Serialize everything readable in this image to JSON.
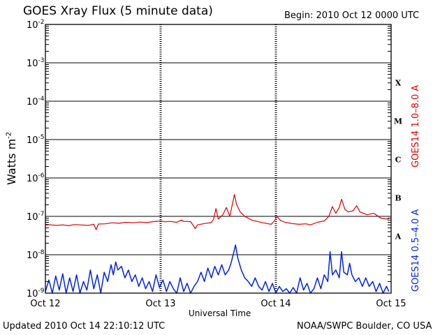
{
  "header": {
    "title": "GOES Xray Flux (5 minute data)",
    "begin": "Begin:  2010 Oct 12 0000 UTC"
  },
  "footer": {
    "updated": "Updated 2010 Oct 14 22:10:12 UTC",
    "credit": "NOAA/SWPC Boulder, CO USA"
  },
  "chart_data": {
    "type": "line",
    "title": "GOES Xray Flux (5 minute data)",
    "xlabel": "Universal Time",
    "ylabel": "Watts m",
    "ylabel_exponent": "-2",
    "y_scale": "log",
    "ylim": [
      1e-09,
      0.01
    ],
    "xlim": [
      "2010-10-12 00:00",
      "2010-10-15 00:00"
    ],
    "x_ticks": [
      "Oct 12",
      "Oct 13",
      "Oct 14",
      "Oct 15"
    ],
    "y_ticks": [
      {
        "mant": "10",
        "exp": "-9",
        "value": 1e-09
      },
      {
        "mant": "10",
        "exp": "-8",
        "value": 1e-08
      },
      {
        "mant": "10",
        "exp": "-7",
        "value": 1e-07
      },
      {
        "mant": "10",
        "exp": "-6",
        "value": 1e-06
      },
      {
        "mant": "10",
        "exp": "-5",
        "value": 1e-05
      },
      {
        "mant": "10",
        "exp": "-4",
        "value": 0.0001
      },
      {
        "mant": "10",
        "exp": "-3",
        "value": 0.001
      },
      {
        "mant": "10",
        "exp": "-2",
        "value": 0.01
      }
    ],
    "flare_classes": [
      {
        "label": "A",
        "value": 1e-08
      },
      {
        "label": "B",
        "value": 1e-07
      },
      {
        "label": "C",
        "value": 1e-06
      },
      {
        "label": "M",
        "value": 1e-05
      },
      {
        "label": "X",
        "value": 0.0001
      }
    ],
    "grid": true,
    "series": [
      {
        "name": "GOES14 1.0–8.0 A",
        "color": "#e00000",
        "points": [
          [
            0.0,
            6.2e-08
          ],
          [
            0.05,
            6e-08
          ],
          [
            0.1,
            5.8e-08
          ],
          [
            0.15,
            6e-08
          ],
          [
            0.2,
            5.7e-08
          ],
          [
            0.25,
            6.1e-08
          ],
          [
            0.3,
            6e-08
          ],
          [
            0.37,
            5.8e-08
          ],
          [
            0.42,
            6.2e-08
          ],
          [
            0.44,
            4.5e-08
          ],
          [
            0.46,
            6.3e-08
          ],
          [
            0.52,
            6.4e-08
          ],
          [
            0.58,
            6.8e-08
          ],
          [
            0.64,
            6.6e-08
          ],
          [
            0.7,
            7e-08
          ],
          [
            0.76,
            6.8e-08
          ],
          [
            0.82,
            7.1e-08
          ],
          [
            0.88,
            6.9e-08
          ],
          [
            0.94,
            7.3e-08
          ],
          [
            1.0,
            7.6e-08
          ],
          [
            1.04,
            7.2e-08
          ],
          [
            1.08,
            7.4e-08
          ],
          [
            1.14,
            7e-08
          ],
          [
            1.18,
            8e-08
          ],
          [
            1.2,
            7.4e-08
          ],
          [
            1.26,
            7.3e-08
          ],
          [
            1.3,
            4.8e-08
          ],
          [
            1.32,
            6e-08
          ],
          [
            1.38,
            6.5e-08
          ],
          [
            1.44,
            6.9e-08
          ],
          [
            1.46,
            8.5e-08
          ],
          [
            1.48,
            1.6e-07
          ],
          [
            1.5,
            8.5e-08
          ],
          [
            1.54,
            1.1e-07
          ],
          [
            1.57,
            1.7e-07
          ],
          [
            1.6,
            1e-07
          ],
          [
            1.62,
            1.9e-07
          ],
          [
            1.64,
            3.7e-07
          ],
          [
            1.66,
            2e-07
          ],
          [
            1.69,
            1.3e-07
          ],
          [
            1.73,
            1e-07
          ],
          [
            1.79,
            8e-08
          ],
          [
            1.85,
            7.2e-08
          ],
          [
            1.91,
            6.6e-08
          ],
          [
            1.96,
            6.2e-08
          ],
          [
            1.99,
            7.8e-08
          ],
          [
            2.01,
            1e-07
          ],
          [
            2.04,
            7.8e-08
          ],
          [
            2.08,
            7e-08
          ],
          [
            2.14,
            6.5e-08
          ],
          [
            2.2,
            6.2e-08
          ],
          [
            2.26,
            6.4e-08
          ],
          [
            2.3,
            6e-08
          ],
          [
            2.36,
            7e-08
          ],
          [
            2.42,
            7.6e-08
          ],
          [
            2.46,
            1e-07
          ],
          [
            2.49,
            1.8e-07
          ],
          [
            2.52,
            1.2e-07
          ],
          [
            2.55,
            1.7e-07
          ],
          [
            2.57,
            2.8e-07
          ],
          [
            2.6,
            1.5e-07
          ],
          [
            2.63,
            1.3e-07
          ],
          [
            2.67,
            1.4e-07
          ],
          [
            2.7,
            1.9e-07
          ],
          [
            2.73,
            1.3e-07
          ],
          [
            2.79,
            1.1e-07
          ],
          [
            2.85,
            1.2e-07
          ],
          [
            2.91,
            9e-08
          ],
          [
            2.97,
            8.5e-08
          ],
          [
            2.98,
            9e-08
          ]
        ]
      },
      {
        "name": "GOES14 0.5–4.0 A",
        "color": "#0022ee",
        "points": [
          [
            0.0,
            1.1e-09
          ],
          [
            0.03,
            2.2e-09
          ],
          [
            0.06,
            1e-09
          ],
          [
            0.09,
            2.8e-09
          ],
          [
            0.12,
            1.2e-09
          ],
          [
            0.15,
            3.2e-09
          ],
          [
            0.18,
            1e-09
          ],
          [
            0.21,
            2.5e-09
          ],
          [
            0.24,
            1.1e-09
          ],
          [
            0.27,
            3e-09
          ],
          [
            0.3,
            1e-09
          ],
          [
            0.33,
            2e-09
          ],
          [
            0.36,
            1.2e-09
          ],
          [
            0.39,
            4e-09
          ],
          [
            0.42,
            1.3e-09
          ],
          [
            0.45,
            3e-09
          ],
          [
            0.48,
            1e-09
          ],
          [
            0.51,
            3.5e-09
          ],
          [
            0.54,
            2e-09
          ],
          [
            0.57,
            5.5e-09
          ],
          [
            0.59,
            3e-09
          ],
          [
            0.61,
            6.5e-09
          ],
          [
            0.63,
            4e-09
          ],
          [
            0.66,
            5e-09
          ],
          [
            0.69,
            2.5e-09
          ],
          [
            0.72,
            4e-09
          ],
          [
            0.75,
            2e-09
          ],
          [
            0.78,
            3e-09
          ],
          [
            0.81,
            1.5e-09
          ],
          [
            0.84,
            2.5e-09
          ],
          [
            0.87,
            1.3e-09
          ],
          [
            0.9,
            2e-09
          ],
          [
            0.93,
            1.1e-09
          ],
          [
            0.96,
            3e-09
          ],
          [
            0.99,
            1.4e-09
          ],
          [
            1.02,
            2.2e-09
          ],
          [
            1.05,
            1.1e-09
          ],
          [
            1.08,
            2e-09
          ],
          [
            1.11,
            1.3e-09
          ],
          [
            1.14,
            1e-09
          ],
          [
            1.17,
            2.5e-09
          ],
          [
            1.2,
            1.1e-09
          ],
          [
            1.23,
            1.8e-09
          ],
          [
            1.26,
            1e-09
          ],
          [
            1.29,
            1.5e-09
          ],
          [
            1.32,
            2e-09
          ],
          [
            1.35,
            3.5e-09
          ],
          [
            1.38,
            2e-09
          ],
          [
            1.41,
            4.5e-09
          ],
          [
            1.44,
            2.5e-09
          ],
          [
            1.47,
            5e-09
          ],
          [
            1.5,
            3e-09
          ],
          [
            1.53,
            5.5e-09
          ],
          [
            1.56,
            3e-09
          ],
          [
            1.59,
            4e-09
          ],
          [
            1.61,
            6e-09
          ],
          [
            1.63,
            1e-08
          ],
          [
            1.65,
            1.8e-08
          ],
          [
            1.67,
            8e-09
          ],
          [
            1.7,
            4e-09
          ],
          [
            1.73,
            2.5e-09
          ],
          [
            1.76,
            2e-09
          ],
          [
            1.79,
            1.5e-09
          ],
          [
            1.82,
            2.5e-09
          ],
          [
            1.85,
            1.5e-09
          ],
          [
            1.88,
            1.2e-09
          ],
          [
            1.91,
            2e-09
          ],
          [
            1.94,
            1.1e-09
          ],
          [
            1.97,
            1.8e-09
          ],
          [
            2.0,
            1e-09
          ],
          [
            2.03,
            1.5e-09
          ],
          [
            2.06,
            1.1e-09
          ],
          [
            2.09,
            1.3e-09
          ],
          [
            2.12,
            1e-09
          ],
          [
            2.15,
            1.4e-09
          ],
          [
            2.18,
            1e-09
          ],
          [
            2.21,
            2.5e-09
          ],
          [
            2.24,
            1.2e-09
          ],
          [
            2.27,
            1.8e-09
          ],
          [
            2.3,
            1e-09
          ],
          [
            2.33,
            1.3e-09
          ],
          [
            2.36,
            2.5e-09
          ],
          [
            2.39,
            1.3e-09
          ],
          [
            2.42,
            3e-09
          ],
          [
            2.45,
            2e-09
          ],
          [
            2.47,
            1.2e-08
          ],
          [
            2.49,
            3e-09
          ],
          [
            2.52,
            4e-09
          ],
          [
            2.55,
            2.5e-09
          ],
          [
            2.57,
            1.2e-08
          ],
          [
            2.59,
            3.5e-09
          ],
          [
            2.62,
            3e-09
          ],
          [
            2.64,
            6e-09
          ],
          [
            2.66,
            3e-09
          ],
          [
            2.69,
            2e-09
          ],
          [
            2.72,
            2.5e-09
          ],
          [
            2.75,
            1.5e-09
          ],
          [
            2.78,
            2.5e-09
          ],
          [
            2.81,
            1.5e-09
          ],
          [
            2.84,
            2e-09
          ],
          [
            2.87,
            1.1e-09
          ],
          [
            2.9,
            1.8e-09
          ],
          [
            2.93,
            1e-09
          ],
          [
            2.96,
            1.5e-09
          ],
          [
            2.98,
            1.1e-09
          ]
        ]
      }
    ]
  }
}
